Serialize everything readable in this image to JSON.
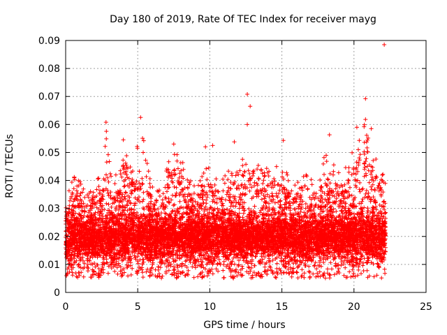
{
  "chart_data": {
    "type": "scatter",
    "title": "Day 180 of 2019, Rate Of TEC Index for receiver mayg",
    "xlabel": "GPS time / hours",
    "ylabel": "ROTI / TECUs",
    "xlim": [
      0,
      25
    ],
    "ylim": [
      0,
      0.09
    ],
    "x_ticks": [
      0,
      5,
      10,
      15,
      20,
      25
    ],
    "x_tick_labels": [
      "0",
      "5",
      "10",
      "15",
      "20",
      "25"
    ],
    "y_ticks": [
      0,
      0.01,
      0.02,
      0.03,
      0.04,
      0.05,
      0.06,
      0.07,
      0.08,
      0.09
    ],
    "y_tick_labels": [
      "0",
      "0.01",
      "0.02",
      "0.03",
      "0.04",
      "0.05",
      "0.06",
      "0.07",
      "0.08",
      "0.09"
    ],
    "grid": true,
    "marker": "+",
    "color": "#ff0000",
    "data_coverage_hours": [
      0,
      22.2
    ],
    "bulk_band": [
      0.005,
      0.035
    ],
    "envelope": [
      [
        0.0,
        0.03
      ],
      [
        0.5,
        0.045
      ],
      [
        1.0,
        0.04
      ],
      [
        1.5,
        0.035
      ],
      [
        2.0,
        0.04
      ],
      [
        2.5,
        0.045
      ],
      [
        2.8,
        0.06
      ],
      [
        3.2,
        0.04
      ],
      [
        3.8,
        0.045
      ],
      [
        4.0,
        0.054
      ],
      [
        4.5,
        0.045
      ],
      [
        5.0,
        0.055
      ],
      [
        5.3,
        0.062
      ],
      [
        5.7,
        0.045
      ],
      [
        6.2,
        0.035
      ],
      [
        6.8,
        0.04
      ],
      [
        7.3,
        0.05
      ],
      [
        7.8,
        0.052
      ],
      [
        8.3,
        0.045
      ],
      [
        8.8,
        0.04
      ],
      [
        9.5,
        0.045
      ],
      [
        10.2,
        0.045
      ],
      [
        10.8,
        0.04
      ],
      [
        11.5,
        0.045
      ],
      [
        12.0,
        0.045
      ],
      [
        12.5,
        0.05
      ],
      [
        13.0,
        0.05
      ],
      [
        13.5,
        0.045
      ],
      [
        14.2,
        0.045
      ],
      [
        15.0,
        0.045
      ],
      [
        15.8,
        0.04
      ],
      [
        16.5,
        0.045
      ],
      [
        17.3,
        0.04
      ],
      [
        18.0,
        0.05
      ],
      [
        18.5,
        0.048
      ],
      [
        19.2,
        0.042
      ],
      [
        19.8,
        0.05
      ],
      [
        20.3,
        0.055
      ],
      [
        20.8,
        0.062
      ],
      [
        21.4,
        0.05
      ],
      [
        21.8,
        0.045
      ],
      [
        22.2,
        0.04
      ]
    ],
    "outliers": [
      {
        "x": 22.1,
        "y": 0.0885
      },
      {
        "x": 12.6,
        "y": 0.0708
      },
      {
        "x": 12.8,
        "y": 0.0665
      },
      {
        "x": 20.8,
        "y": 0.0692
      },
      {
        "x": 12.6,
        "y": 0.06
      },
      {
        "x": 5.2,
        "y": 0.0625
      },
      {
        "x": 2.8,
        "y": 0.0608
      },
      {
        "x": 20.8,
        "y": 0.0618
      },
      {
        "x": 20.2,
        "y": 0.059
      },
      {
        "x": 21.2,
        "y": 0.0585
      },
      {
        "x": 18.3,
        "y": 0.0563
      },
      {
        "x": 15.1,
        "y": 0.0543
      },
      {
        "x": 11.7,
        "y": 0.0538
      },
      {
        "x": 9.7,
        "y": 0.052
      },
      {
        "x": 10.2,
        "y": 0.0525
      },
      {
        "x": 20.3,
        "y": 0.051
      },
      {
        "x": 7.5,
        "y": 0.053
      },
      {
        "x": 4.0,
        "y": 0.0545
      }
    ]
  }
}
